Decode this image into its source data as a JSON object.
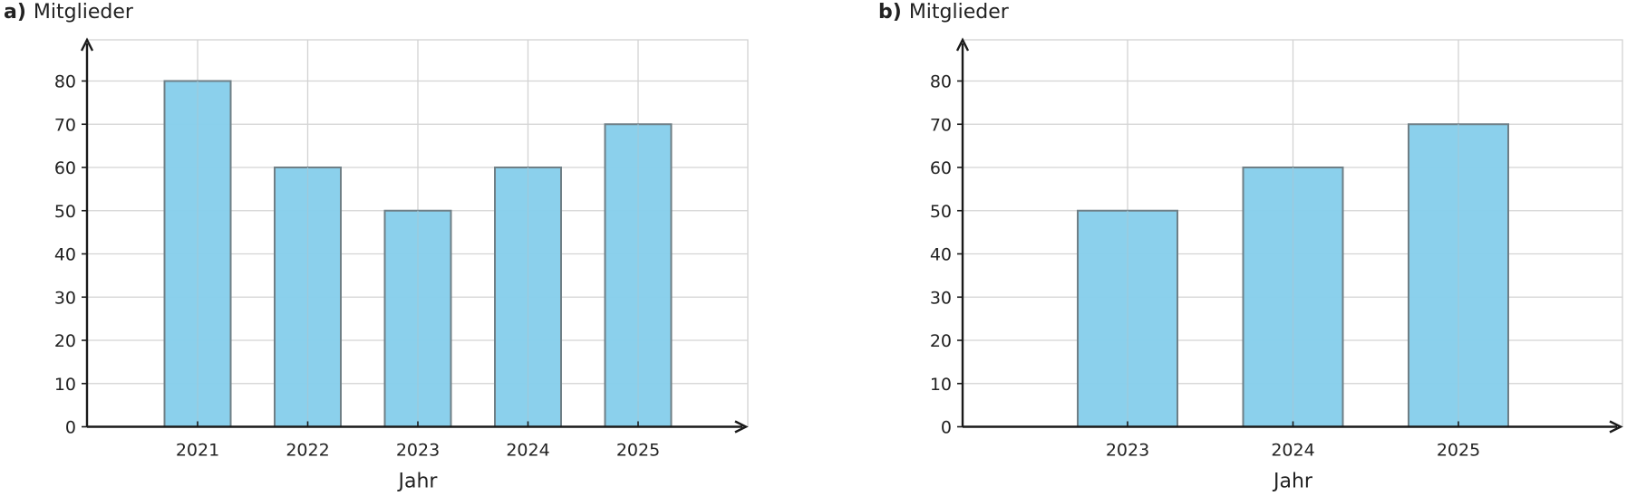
{
  "chart_data": [
    {
      "type": "bar",
      "panel": "a)",
      "ylabel": "Mitglieder",
      "xlabel": "Jahr",
      "categories": [
        "2021",
        "2022",
        "2023",
        "2024",
        "2025"
      ],
      "values": [
        80,
        60,
        50,
        60,
        70
      ],
      "ylim": [
        0,
        80
      ],
      "yticks": [
        0,
        10,
        20,
        30,
        40,
        50,
        60,
        70,
        80
      ],
      "grid": true,
      "bar_color": "#87CEEB"
    },
    {
      "type": "bar",
      "panel": "b)",
      "ylabel": "Mitglieder",
      "xlabel": "Jahr",
      "categories": [
        "2023",
        "2024",
        "2025"
      ],
      "values": [
        50,
        60,
        70
      ],
      "ylim": [
        0,
        80
      ],
      "yticks": [
        0,
        10,
        20,
        30,
        40,
        50,
        60,
        70,
        80
      ],
      "grid": true,
      "bar_color": "#87CEEB"
    }
  ]
}
